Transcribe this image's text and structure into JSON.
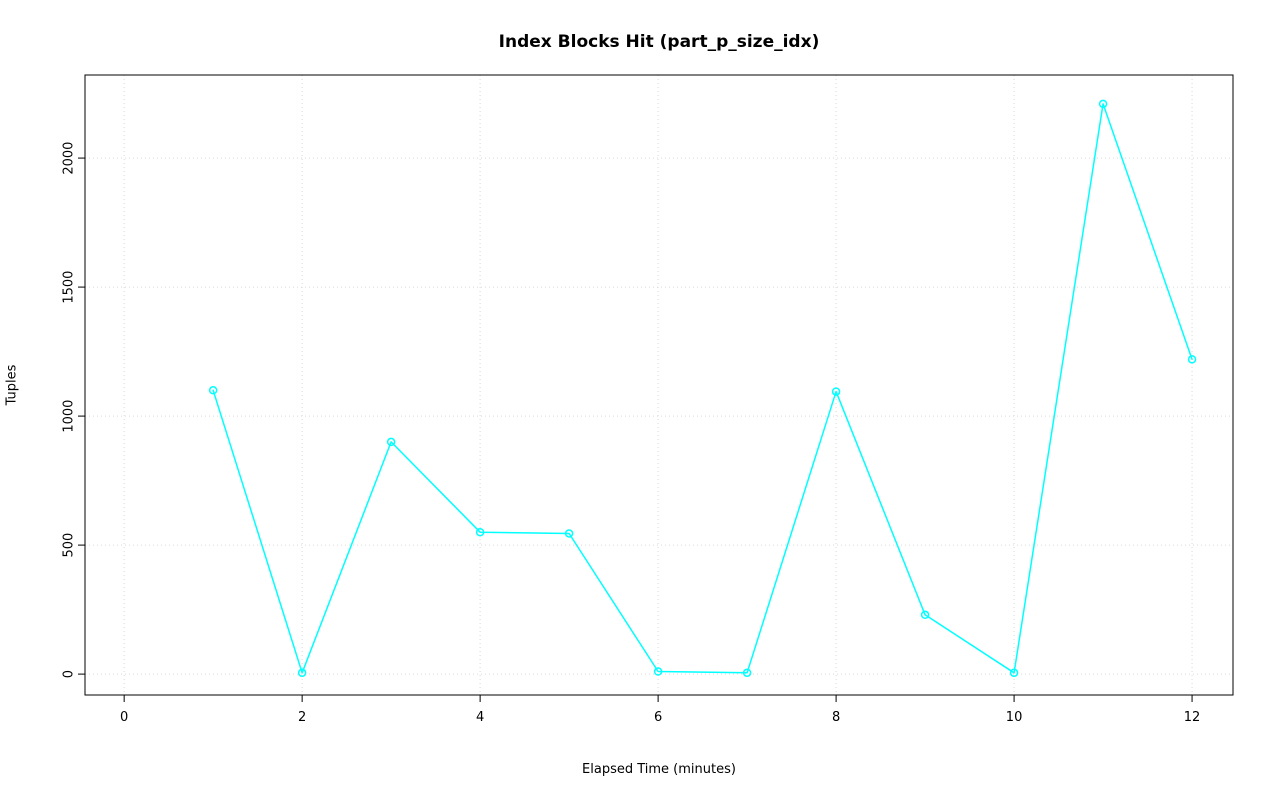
{
  "chart_data": {
    "type": "line",
    "title": "Index Blocks Hit (part_p_size_idx)",
    "xlabel": "Elapsed Time (minutes)",
    "ylabel": "Tuples",
    "x": [
      1,
      2,
      3,
      4,
      5,
      6,
      7,
      8,
      9,
      10,
      11,
      12
    ],
    "values": [
      1100,
      5,
      900,
      550,
      545,
      10,
      5,
      1095,
      230,
      5,
      2210,
      1220
    ],
    "xticks": [
      0,
      2,
      4,
      6,
      8,
      10,
      12
    ],
    "yticks": [
      0,
      500,
      1000,
      1500,
      2000
    ],
    "xlim": [
      -0.44,
      12.46
    ],
    "ylim": [
      -81,
      2322
    ],
    "grid": true,
    "legend": "none",
    "line_color": "#00ffff",
    "grid_color": "#d9d9d9",
    "axis_color": "#000000",
    "marker": "open-circle"
  }
}
